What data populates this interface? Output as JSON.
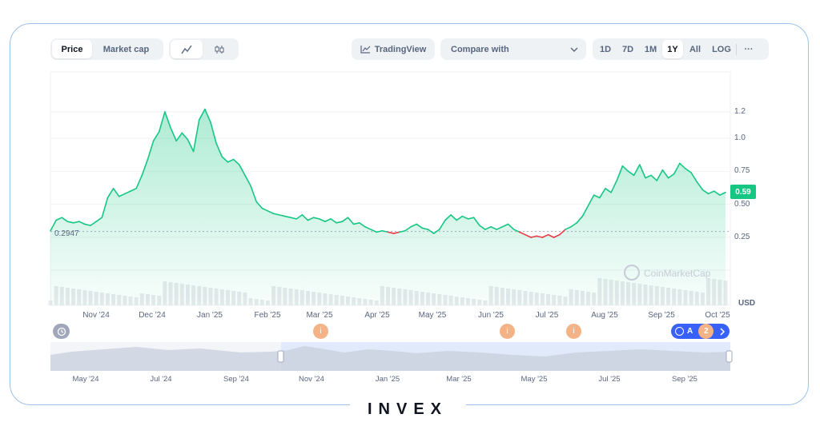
{
  "toolbar": {
    "tab_price": "Price",
    "tab_market_cap": "Market cap",
    "tradingview_label": "TradingView",
    "compare_placeholder": "Compare with",
    "ranges": [
      "1D",
      "7D",
      "1M",
      "1Y",
      "All",
      "LOG"
    ],
    "active_range": "1Y",
    "more_label": "···"
  },
  "chart": {
    "current_price_label": "0.59",
    "reference_price_label": "0.2947",
    "currency_label": "USD",
    "watermark": "CoinMarketCap",
    "up_color": "#16c784",
    "down_color": "#ea3943"
  },
  "chart_data": {
    "type": "line",
    "y_ticks": [
      "0.25",
      "0.50",
      "0.75",
      "1.0",
      "1.2"
    ],
    "ylim": [
      0.0,
      1.32
    ],
    "reference_value": 0.2947,
    "current_value": 0.59,
    "x_tick_labels": [
      "Nov '24",
      "Dec '24",
      "Jan '25",
      "Feb '25",
      "Mar '25",
      "Apr '25",
      "May '25",
      "Jun '25",
      "Jul '25",
      "Aug '25",
      "Sep '25",
      "Oct '25"
    ],
    "series": [
      {
        "values": [
          0.3,
          0.38,
          0.4,
          0.37,
          0.36,
          0.37,
          0.35,
          0.34,
          0.37,
          0.4,
          0.55,
          0.62,
          0.56,
          0.58,
          0.6,
          0.62,
          0.72,
          0.84,
          0.98,
          1.05,
          1.2,
          1.08,
          0.98,
          1.04,
          0.99,
          0.9,
          1.14,
          1.22,
          1.12,
          0.96,
          0.86,
          0.82,
          0.84,
          0.8,
          0.72,
          0.64,
          0.52,
          0.47,
          0.45,
          0.43,
          0.42,
          0.41,
          0.4,
          0.39,
          0.42,
          0.38,
          0.4,
          0.39,
          0.37,
          0.39,
          0.36,
          0.37,
          0.4,
          0.35,
          0.36,
          0.33,
          0.31,
          0.29,
          0.3,
          0.29,
          0.28,
          0.29,
          0.3,
          0.33,
          0.35,
          0.32,
          0.31,
          0.28,
          0.31,
          0.38,
          0.42,
          0.38,
          0.41,
          0.39,
          0.4,
          0.34,
          0.31,
          0.33,
          0.31,
          0.33,
          0.35,
          0.31,
          0.29,
          0.27,
          0.25,
          0.26,
          0.25,
          0.27,
          0.25,
          0.27,
          0.31,
          0.33,
          0.36,
          0.41,
          0.49,
          0.57,
          0.55,
          0.62,
          0.59,
          0.68,
          0.79,
          0.75,
          0.72,
          0.8,
          0.7,
          0.72,
          0.68,
          0.76,
          0.7,
          0.73,
          0.81,
          0.77,
          0.74,
          0.67,
          0.61,
          0.58,
          0.6,
          0.57,
          0.59
        ]
      }
    ],
    "mini_x_tick_labels": [
      "May '24",
      "Jul '24",
      "Sep '24",
      "Nov '24",
      "Jan '25",
      "Mar '25",
      "May '25",
      "Jul '25",
      "Sep '25"
    ]
  },
  "events": [
    {
      "label": "i"
    },
    {
      "label": "i"
    },
    {
      "label": "i"
    },
    {
      "label": "2"
    }
  ],
  "badge": {
    "label": "A",
    "count": "2"
  },
  "brand": {
    "name": "INVEX"
  }
}
